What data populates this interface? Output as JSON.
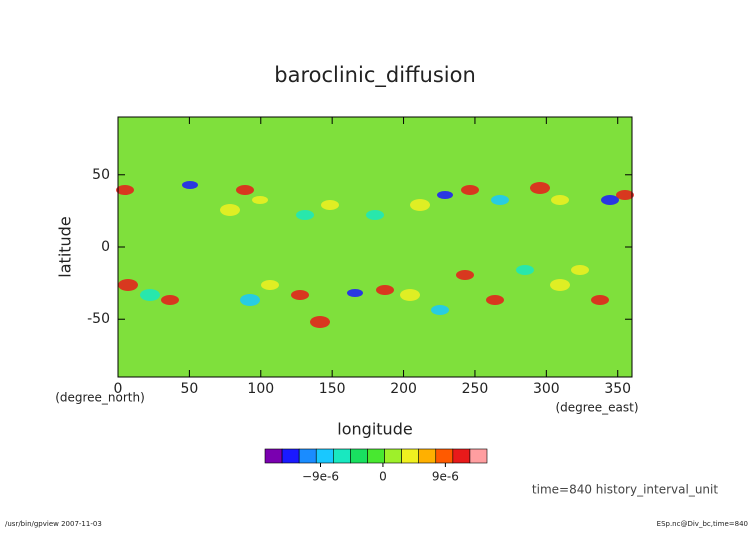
{
  "chart_data": {
    "type": "contour-map",
    "title": "baroclinic_diffusion",
    "x_label": "longitude",
    "y_label": "latitude",
    "x_unit": "(degree_east)",
    "y_unit": "(degree_north)",
    "xlim": [
      0,
      360
    ],
    "xticks": [
      0,
      50,
      100,
      150,
      200,
      250,
      300,
      350
    ],
    "ylim": [
      -90,
      90
    ],
    "yticks": [
      -50,
      0,
      50
    ],
    "background_color": "#7fe03c",
    "colorbar": {
      "colors": [
        "#7a00b0",
        "#1a1aff",
        "#1a8cff",
        "#19c8ff",
        "#19e8c0",
        "#19e060",
        "#48e830",
        "#9ef02a",
        "#f0f020",
        "#ffb000",
        "#ff5a00",
        "#e81a1a",
        "#ff9ea0"
      ],
      "clim": [
        -1.7e-05,
        1.5e-05
      ],
      "ticks": [
        {
          "value": -9e-06,
          "label": "−9e-6"
        },
        0,
        {
          "value": 9e-06,
          "label": "9e-6"
        }
      ]
    },
    "annotation": "time=840 history_interval_unit",
    "footer_left": "/usr/bin/gpview  2007-11-03",
    "footer_right": "ESp.nc@Div_bc,time=840"
  }
}
